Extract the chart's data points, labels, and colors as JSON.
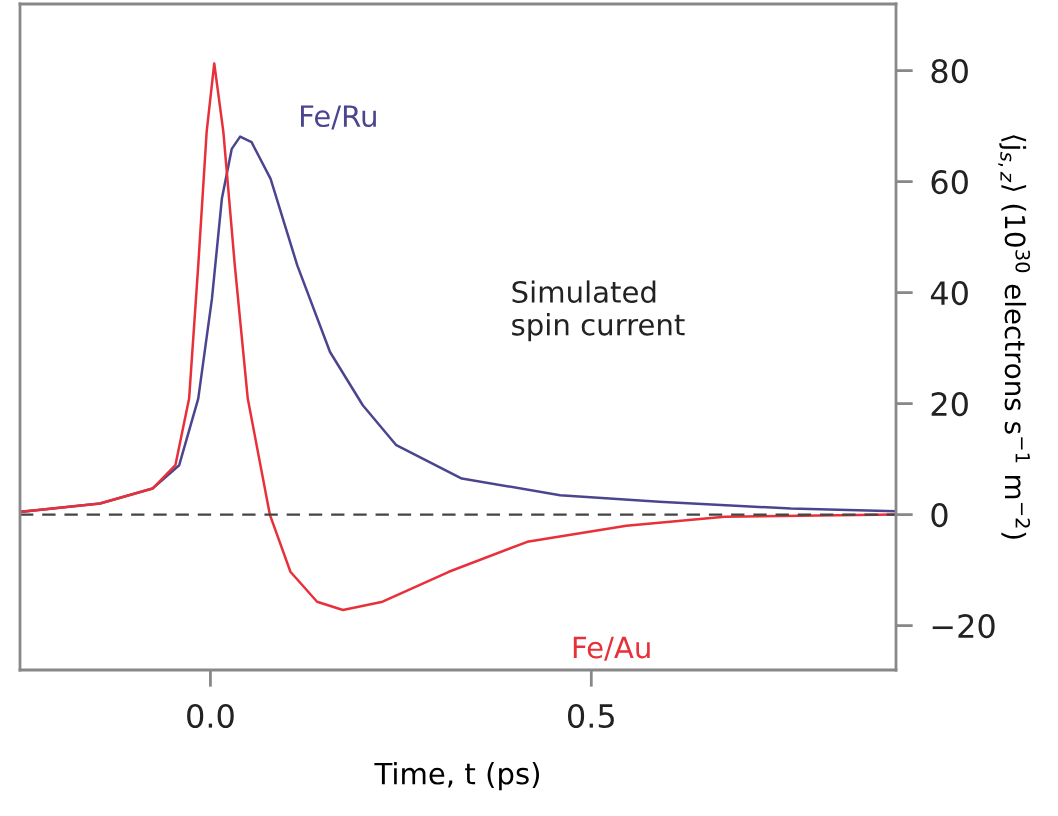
{
  "chart_data": {
    "type": "line",
    "xlabel": "Time, t (ps)",
    "ylabel": "⟨j$_{s,z}$⟩ (10$^{30}$ electrons s$^{−1}$ m$^{−2}$)",
    "xlim": [
      -0.25,
      0.9
    ],
    "xticks": [
      {
        "value": 0,
        "label": "0.0"
      },
      0.5
    ],
    "ylim": [
      -28,
      92
    ],
    "yticks": [
      {
        "value": -20,
        "label": "−20"
      },
      0,
      20,
      40,
      60,
      80
    ],
    "series": [
      {
        "name": "Fe/Ru",
        "color": "#4b4590",
        "x": [
          -0.249,
          -0.145,
          -0.076,
          -0.041,
          -0.016,
          0.002,
          0.015,
          0.028,
          0.039,
          0.054,
          0.079,
          0.114,
          0.157,
          0.2,
          0.244,
          0.33,
          0.459,
          0.589,
          0.762,
          0.9
        ],
        "values": [
          0.5,
          2.0,
          4.7,
          8.9,
          20.9,
          38.9,
          56.9,
          65.9,
          68.1,
          67.1,
          60.5,
          44.9,
          29.3,
          19.7,
          12.5,
          6.5,
          3.5,
          2.3,
          1.1,
          0.6
        ]
      },
      {
        "name": "Fe/Au",
        "color": "#e8303a",
        "x": [
          -0.249,
          -0.145,
          -0.076,
          -0.046,
          -0.028,
          -0.016,
          -0.005,
          0.005,
          0.017,
          0.032,
          0.049,
          0.078,
          0.105,
          0.14,
          0.174,
          0.226,
          0.313,
          0.416,
          0.546,
          0.675,
          0.9
        ],
        "values": [
          0.5,
          2.0,
          4.7,
          8.9,
          20.9,
          44.9,
          68.9,
          81.3,
          68.9,
          44.9,
          20.9,
          0,
          -10.3,
          -15.7,
          -17.2,
          -15.7,
          -10.3,
          -4.9,
          -2.0,
          -0.4,
          0
        ]
      }
    ],
    "ref_lines": [
      {
        "axis": "y",
        "value": 0,
        "color": "#444444",
        "line_style": "dashed"
      }
    ],
    "annotations": [
      "Simulated\nspin current"
    ],
    "grid": false,
    "marker": "none",
    "line_style": "solid"
  }
}
